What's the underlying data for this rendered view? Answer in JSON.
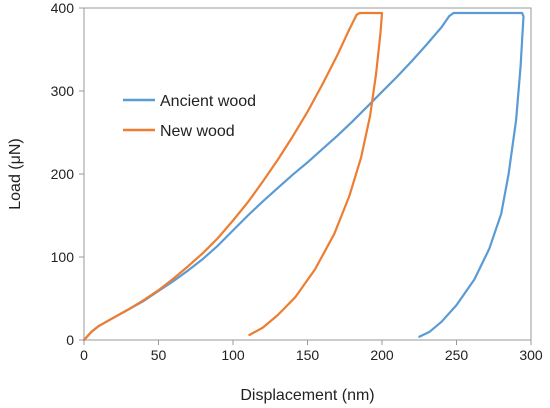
{
  "chart_data": {
    "type": "line",
    "title": "",
    "xlabel": "Displacement (nm)",
    "ylabel": "Load (μN)",
    "xlim": [
      0,
      300
    ],
    "ylim": [
      0,
      400
    ],
    "x_ticks": [
      "0",
      "50",
      "100",
      "150",
      "200",
      "250",
      "300"
    ],
    "y_ticks": [
      "0",
      "100",
      "200",
      "300",
      "400"
    ],
    "grid": false,
    "legend_position": "upper-left inside plot",
    "colors": {
      "Ancient wood": "#5b9bd5",
      "New wood": "#ed7d31",
      "axis": "#999999"
    },
    "series": [
      {
        "name": "Ancient wood",
        "color": "#5b9bd5",
        "points": [
          [
            0,
            0
          ],
          [
            5,
            10
          ],
          [
            10,
            17
          ],
          [
            20,
            27
          ],
          [
            30,
            37
          ],
          [
            40,
            47
          ],
          [
            50,
            59
          ],
          [
            60,
            71
          ],
          [
            70,
            84
          ],
          [
            80,
            98
          ],
          [
            90,
            114
          ],
          [
            100,
            132
          ],
          [
            110,
            150
          ],
          [
            120,
            167
          ],
          [
            130,
            183
          ],
          [
            140,
            199
          ],
          [
            150,
            214
          ],
          [
            160,
            230
          ],
          [
            170,
            246
          ],
          [
            180,
            263
          ],
          [
            190,
            281
          ],
          [
            200,
            299
          ],
          [
            210,
            317
          ],
          [
            220,
            336
          ],
          [
            230,
            356
          ],
          [
            240,
            377
          ],
          [
            245,
            390
          ],
          [
            248,
            394
          ],
          [
            255,
            394
          ],
          [
            270,
            394
          ],
          [
            285,
            394
          ],
          [
            294,
            394
          ],
          [
            295,
            390
          ],
          [
            293,
            330
          ],
          [
            290,
            265
          ],
          [
            285,
            200
          ],
          [
            280,
            152
          ],
          [
            272,
            110
          ],
          [
            262,
            73
          ],
          [
            250,
            42
          ],
          [
            240,
            22
          ],
          [
            232,
            10
          ],
          [
            225,
            4
          ]
        ]
      },
      {
        "name": "New wood",
        "color": "#ed7d31",
        "points": [
          [
            0,
            0
          ],
          [
            5,
            10
          ],
          [
            10,
            17
          ],
          [
            20,
            27
          ],
          [
            30,
            37
          ],
          [
            40,
            48
          ],
          [
            50,
            60
          ],
          [
            60,
            74
          ],
          [
            70,
            89
          ],
          [
            80,
            105
          ],
          [
            90,
            123
          ],
          [
            100,
            144
          ],
          [
            110,
            166
          ],
          [
            120,
            191
          ],
          [
            130,
            217
          ],
          [
            140,
            245
          ],
          [
            150,
            275
          ],
          [
            160,
            308
          ],
          [
            170,
            343
          ],
          [
            178,
            374
          ],
          [
            183,
            392
          ],
          [
            185,
            394
          ],
          [
            193,
            394
          ],
          [
            200,
            394
          ],
          [
            199,
            370
          ],
          [
            196,
            320
          ],
          [
            192,
            270
          ],
          [
            186,
            220
          ],
          [
            178,
            173
          ],
          [
            168,
            128
          ],
          [
            155,
            85
          ],
          [
            142,
            52
          ],
          [
            130,
            30
          ],
          [
            120,
            15
          ],
          [
            111,
            6
          ]
        ]
      }
    ]
  }
}
